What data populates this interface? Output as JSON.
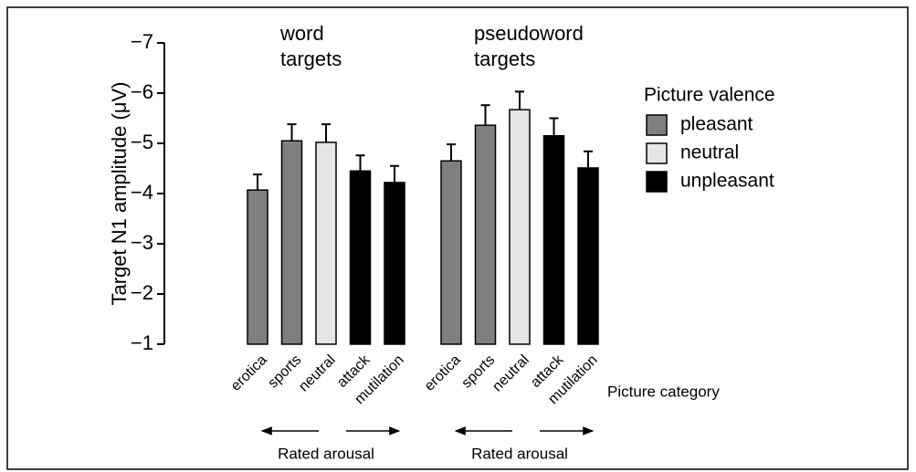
{
  "chart_data": {
    "type": "bar",
    "y_label": "Target N1 amplitude (μV)",
    "x_label": "Picture category",
    "ylim": [
      -1,
      -7
    ],
    "yticks": [
      {
        "value": -1,
        "label": "−1"
      },
      {
        "value": -2,
        "label": "−2"
      },
      {
        "value": -3,
        "label": "−3"
      },
      {
        "value": -4,
        "label": "−4"
      },
      {
        "value": -5,
        "label": "−5"
      },
      {
        "value": -6,
        "label": "−6"
      },
      {
        "value": -7,
        "label": "−7"
      }
    ],
    "categories": [
      "erotica",
      "sports",
      "neutral",
      "attack",
      "mutilation"
    ],
    "colors": [
      "#7f7f7f",
      "#7f7f7f",
      "#e6e6e6",
      "#000000",
      "#000000"
    ],
    "series": [
      {
        "name": "word targets",
        "values": [
          -4.07,
          -5.05,
          -5.02,
          -4.45,
          -4.22
        ],
        "errors": [
          0.31,
          0.33,
          0.36,
          0.31,
          0.33
        ],
        "annotation": "Rated arousal"
      },
      {
        "name": "pseudoword targets",
        "values": [
          -4.65,
          -5.36,
          -5.67,
          -5.15,
          -4.51
        ],
        "errors": [
          0.33,
          0.4,
          0.36,
          0.35,
          0.33
        ],
        "annotation": "Rated arousal"
      }
    ],
    "legend": {
      "title": "Picture valence",
      "entries": [
        {
          "name": "pleasant",
          "color": "#7f7f7f"
        },
        {
          "name": "neutral",
          "color": "#e6e6e6"
        },
        {
          "name": "unpleasant",
          "color": "#000000"
        }
      ]
    }
  }
}
